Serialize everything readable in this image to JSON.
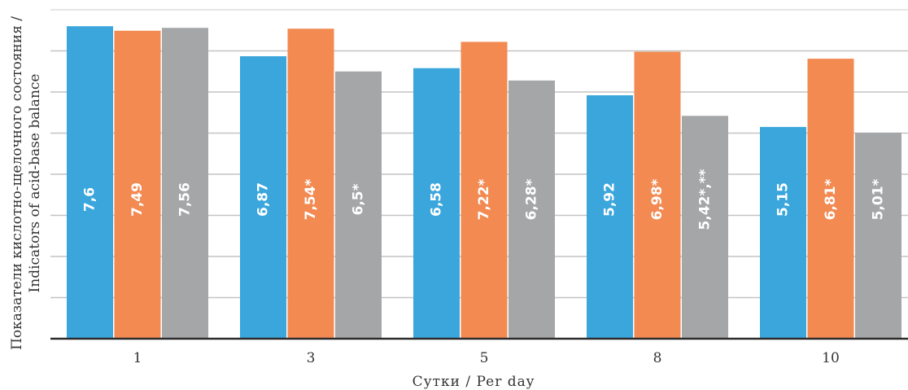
{
  "chart_data": {
    "type": "bar",
    "xlabel": "Сутки / Per day",
    "ylabel_line1": "Показатели кислотно-щелочного состояния /",
    "ylabel_line2": "Indicators of acid-base balance",
    "categories": [
      "1",
      "3",
      "5",
      "8",
      "10"
    ],
    "ylim": [
      0,
      8
    ],
    "grid": true,
    "legend": "none",
    "series": [
      {
        "color": "#3ba6dc",
        "values": [
          7.6,
          6.87,
          6.58,
          5.92,
          5.15
        ],
        "labels": [
          "7,6",
          "6,87",
          "6,58",
          "5,92",
          "5,15"
        ]
      },
      {
        "color": "#f28a52",
        "values": [
          7.49,
          7.54,
          7.22,
          6.98,
          6.81
        ],
        "labels": [
          "7,49",
          "7,54*",
          "7,22*",
          "6,98*",
          "6,81*"
        ]
      },
      {
        "color": "#a4a6a8",
        "values": [
          7.56,
          6.5,
          6.28,
          5.42,
          5.01
        ],
        "labels": [
          "7,56",
          "6,5*",
          "6,28*",
          "5,42*,**",
          "5,01*"
        ]
      }
    ]
  }
}
